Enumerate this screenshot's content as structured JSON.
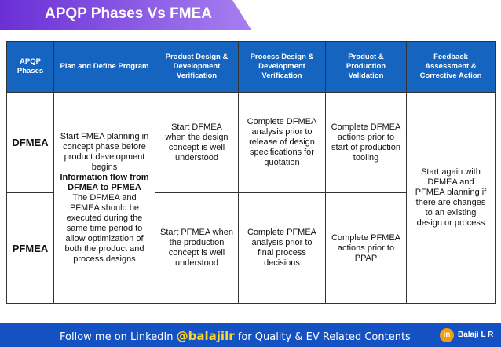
{
  "header": {
    "title": "APQP Phases Vs FMEA"
  },
  "table": {
    "columns": [
      "APQP Phases",
      "Plan and Define Program",
      "Product Design & Development Verification",
      "Process Design & Development Verification",
      "Product & Production Validation",
      "Feedback Assessment & Corrective Action"
    ],
    "plan": {
      "intro": "Start FMEA planning in concept phase before product development begins",
      "highlight": "Information flow from DFMEA to PFMEA",
      "detail": "The DFMEA and PFMEA should be executed during the same time period to allow optimization of both the product and process designs"
    },
    "feedback": "Start again with DFMEA and PFMEA planning if there are changes to an existing design or process",
    "rows": [
      {
        "phase": "DFMEA",
        "design": "Start DFMEA when the design concept is well understood",
        "process": "Complete DFMEA analysis prior to release of design specifications for quotation",
        "validation": "Complete DFMEA actions prior to start of production tooling"
      },
      {
        "phase": "PFMEA",
        "design": "Start PFMEA when the production concept is well understood",
        "process": "Complete PFMEA analysis prior to final process decisions",
        "validation": "Complete PFMEA actions prior to PPAP"
      }
    ]
  },
  "footer": {
    "prefix": "Follow me on LinkedIn",
    "handle": "@balajilr",
    "suffix": "for Quality & EV Related Contents",
    "icon": "in",
    "name": "Balaji L R"
  }
}
